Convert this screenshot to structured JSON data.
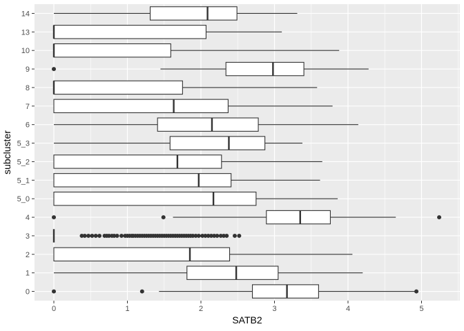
{
  "chart_data": {
    "type": "boxplot",
    "orientation": "horizontal",
    "xlabel": "SATB2",
    "ylabel": "subcluster",
    "xlim": [
      -0.3,
      5.5
    ],
    "xticks": [
      0,
      1,
      2,
      3,
      4,
      5
    ],
    "grid": true,
    "legend": "none",
    "colors": {
      "panel": "#ebebeb",
      "grid": "#ffffff",
      "box_fill": "#ffffff",
      "stroke": "#333333",
      "outlier": "#333333"
    },
    "categories": [
      "0",
      "1",
      "2",
      "3",
      "4",
      "5_0",
      "5_1",
      "5_2",
      "5_3",
      "6",
      "7",
      "8",
      "9",
      "10",
      "13",
      "14"
    ],
    "boxes": [
      {
        "label": "0",
        "whisker_low": 1.43,
        "q1": 2.7,
        "median": 3.17,
        "q3": 3.6,
        "whisker_high": 4.93,
        "outliers": [
          0,
          1.2,
          4.93
        ]
      },
      {
        "label": "1",
        "whisker_low": 0,
        "q1": 1.81,
        "median": 2.48,
        "q3": 3.05,
        "whisker_high": 4.2,
        "outliers": []
      },
      {
        "label": "2",
        "whisker_low": 0,
        "q1": 0,
        "median": 1.85,
        "q3": 2.39,
        "whisker_high": 4.06,
        "outliers": []
      },
      {
        "label": "3",
        "whisker_low": 0,
        "q1": 0,
        "median": 0,
        "q3": 0,
        "whisker_high": 0,
        "outliers": [
          0.38,
          0.42,
          0.47,
          0.52,
          0.57,
          0.62,
          0.69,
          0.72,
          0.75,
          0.79,
          0.82,
          0.86,
          0.92,
          0.97,
          1.0,
          1.03,
          1.06,
          1.08,
          1.11,
          1.14,
          1.17,
          1.2,
          1.23,
          1.26,
          1.29,
          1.32,
          1.35,
          1.38,
          1.41,
          1.44,
          1.47,
          1.5,
          1.53,
          1.56,
          1.59,
          1.62,
          1.65,
          1.68,
          1.71,
          1.74,
          1.77,
          1.8,
          1.83,
          1.86,
          1.89,
          1.93,
          1.97,
          2.02,
          2.06,
          2.1,
          2.14,
          2.18,
          2.22,
          2.27,
          2.31,
          2.35,
          2.46,
          2.52
        ]
      },
      {
        "label": "4",
        "whisker_low": 1.62,
        "q1": 2.89,
        "median": 3.35,
        "q3": 3.76,
        "whisker_high": 4.65,
        "outliers": [
          0,
          1.49,
          5.24
        ]
      },
      {
        "label": "5_0",
        "whisker_low": 0,
        "q1": 0,
        "median": 2.17,
        "q3": 2.75,
        "whisker_high": 3.86,
        "outliers": []
      },
      {
        "label": "5_1",
        "whisker_low": 0,
        "q1": 0,
        "median": 1.97,
        "q3": 2.41,
        "whisker_high": 3.62,
        "outliers": []
      },
      {
        "label": "5_2",
        "whisker_low": 0,
        "q1": 0,
        "median": 1.68,
        "q3": 2.28,
        "whisker_high": 3.65,
        "outliers": []
      },
      {
        "label": "5_3",
        "whisker_low": 0,
        "q1": 1.58,
        "median": 2.38,
        "q3": 2.87,
        "whisker_high": 3.38,
        "outliers": []
      },
      {
        "label": "6",
        "whisker_low": 0,
        "q1": 1.41,
        "median": 2.15,
        "q3": 2.78,
        "whisker_high": 4.14,
        "outliers": []
      },
      {
        "label": "7",
        "whisker_low": 0,
        "q1": 0,
        "median": 1.63,
        "q3": 2.37,
        "whisker_high": 3.79,
        "outliers": []
      },
      {
        "label": "8",
        "whisker_low": 0,
        "q1": 0,
        "median": 0,
        "q3": 1.75,
        "whisker_high": 3.58,
        "outliers": []
      },
      {
        "label": "9",
        "whisker_low": 1.45,
        "q1": 2.34,
        "median": 2.98,
        "q3": 3.4,
        "whisker_high": 4.28,
        "outliers": [
          0
        ]
      },
      {
        "label": "10",
        "whisker_low": 0,
        "q1": 0,
        "median": 0,
        "q3": 1.59,
        "whisker_high": 3.88,
        "outliers": []
      },
      {
        "label": "13",
        "whisker_low": 0,
        "q1": 0,
        "median": 0,
        "q3": 2.07,
        "whisker_high": 3.1,
        "outliers": []
      },
      {
        "label": "14",
        "whisker_low": 0,
        "q1": 1.31,
        "median": 2.09,
        "q3": 2.49,
        "whisker_high": 3.31,
        "outliers": []
      }
    ]
  }
}
